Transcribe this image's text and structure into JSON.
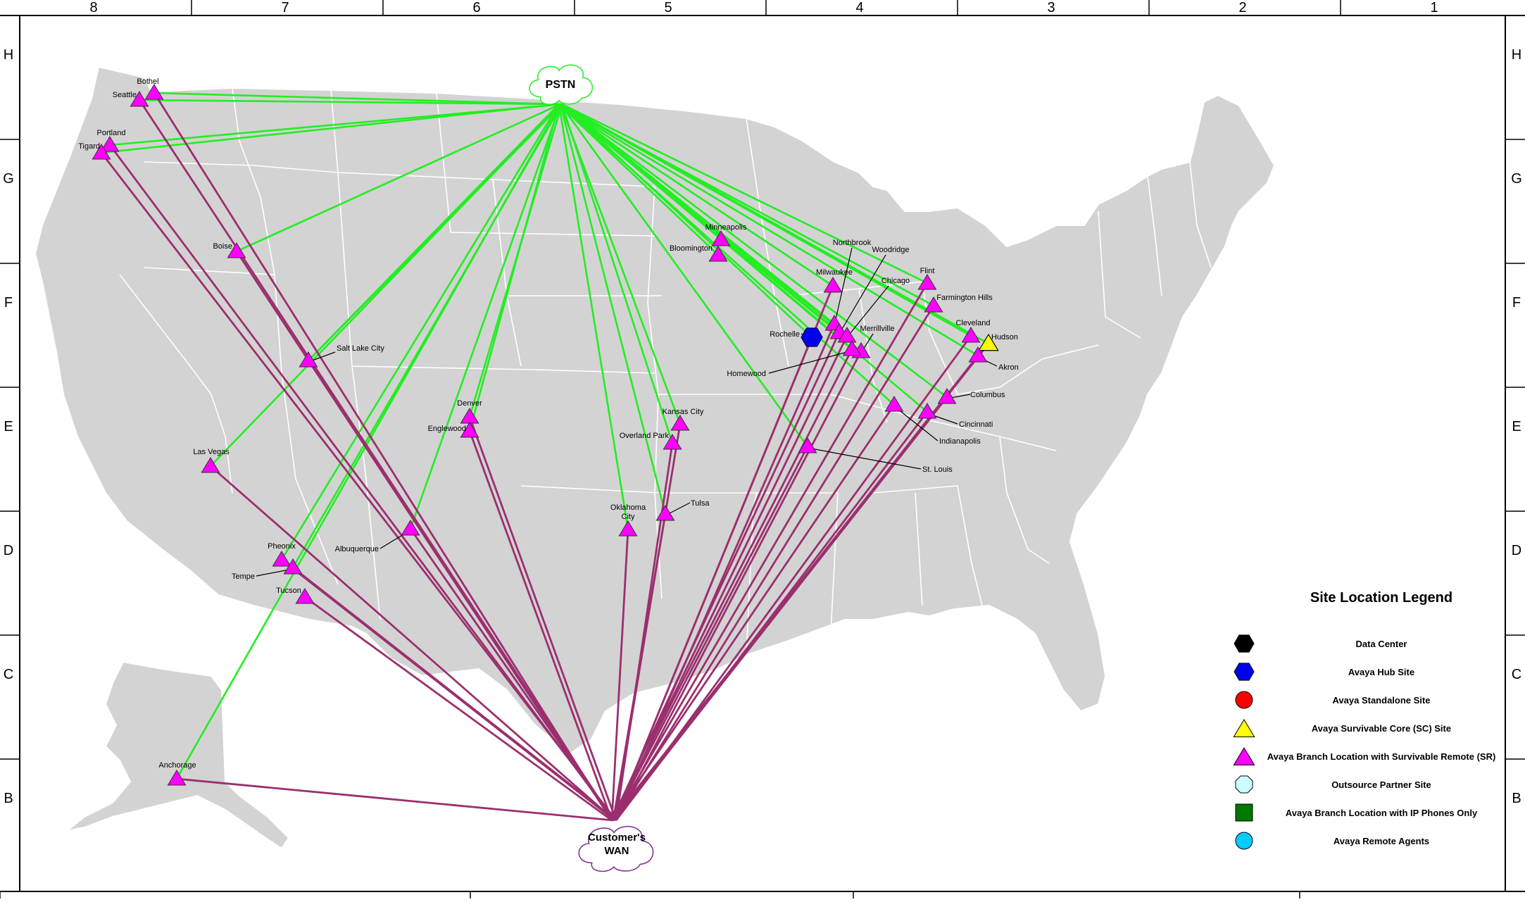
{
  "border": {
    "columns": [
      "8",
      "7",
      "6",
      "5",
      "4",
      "3",
      "2",
      "1"
    ],
    "rows": [
      "H",
      "G",
      "F",
      "E",
      "D",
      "C",
      "B"
    ]
  },
  "clouds": {
    "pstn": "PSTN",
    "wan_line1": "Customer's",
    "wan_line2": "WAN"
  },
  "legend": {
    "title": "Site Location Legend",
    "items": [
      {
        "label": "Data Center",
        "symbol": "hexagon",
        "color": "#000000"
      },
      {
        "label": "Avaya Hub Site",
        "symbol": "hexagon",
        "color": "#0000ee"
      },
      {
        "label": "Avaya Standalone Site",
        "symbol": "circle",
        "color": "#ff0000"
      },
      {
        "label": "Avaya Survivable Core (SC) Site",
        "symbol": "triangle",
        "color": "#ffff00"
      },
      {
        "label": "Avaya Branch Location with Survivable Remote (SR)",
        "symbol": "triangle",
        "color": "#ff00ff"
      },
      {
        "label": "Outsource Partner Site",
        "symbol": "octagon",
        "color": "#ccffff"
      },
      {
        "label": "Avaya Branch Location with IP Phones Only",
        "symbol": "square",
        "color": "#007700"
      },
      {
        "label": "Avaya Remote Agents",
        "symbol": "circle",
        "color": "#00ccff"
      }
    ]
  },
  "colors": {
    "pstn_link": "#22ee22",
    "wan_link": "#9b2f6e",
    "land": "#d3d3d3",
    "branch": "#ff00ff",
    "hub": "#0000ee",
    "core": "#ffff00"
  },
  "sites": [
    {
      "id": "bothel",
      "label": "Bothel",
      "type": "branch"
    },
    {
      "id": "seattle",
      "label": "Seattle",
      "type": "branch"
    },
    {
      "id": "portland",
      "label": "Portland",
      "type": "branch"
    },
    {
      "id": "tigard",
      "label": "Tigard",
      "type": "branch"
    },
    {
      "id": "boise",
      "label": "Boise",
      "type": "branch"
    },
    {
      "id": "saltlake",
      "label": "Salt Lake City",
      "type": "branch"
    },
    {
      "id": "lasvegas",
      "label": "Las Vegas",
      "type": "branch"
    },
    {
      "id": "denver",
      "label": "Denver",
      "type": "branch"
    },
    {
      "id": "englewood",
      "label": "Englewood",
      "type": "branch"
    },
    {
      "id": "albuquerque",
      "label": "Albuquerque",
      "type": "branch"
    },
    {
      "id": "pheonix",
      "label": "Pheonix",
      "type": "branch"
    },
    {
      "id": "tempe",
      "label": "Tempe",
      "type": "branch"
    },
    {
      "id": "tucson",
      "label": "Tucson",
      "type": "branch"
    },
    {
      "id": "anchorage",
      "label": "Anchorage",
      "type": "branch"
    },
    {
      "id": "minneapolis",
      "label": "Minneapolis",
      "type": "branch"
    },
    {
      "id": "bloomington",
      "label": "Bloomington",
      "type": "branch"
    },
    {
      "id": "kansascity",
      "label": "Kansas City",
      "type": "branch"
    },
    {
      "id": "overlandpark",
      "label": "Overland Park",
      "type": "branch"
    },
    {
      "id": "oklahoma",
      "label": "Oklahoma City",
      "type": "branch"
    },
    {
      "id": "tulsa",
      "label": "Tulsa",
      "type": "branch"
    },
    {
      "id": "rochelle",
      "label": "Rochelle",
      "type": "hub"
    },
    {
      "id": "northbrook",
      "label": "Northbrook",
      "type": "branch"
    },
    {
      "id": "woodridge",
      "label": "Woodridge",
      "type": "branch"
    },
    {
      "id": "chicago",
      "label": "Chicago",
      "type": "branch"
    },
    {
      "id": "milwaukee",
      "label": "Milwaukee",
      "type": "branch"
    },
    {
      "id": "merrillville",
      "label": "Merrillville",
      "type": "branch"
    },
    {
      "id": "homewood",
      "label": "Homewood",
      "type": "branch"
    },
    {
      "id": "flint",
      "label": "Flint",
      "type": "branch"
    },
    {
      "id": "farmington",
      "label": "Farmington Hills",
      "type": "branch"
    },
    {
      "id": "cleveland",
      "label": "Cleveland",
      "type": "branch"
    },
    {
      "id": "hudson",
      "label": "Hudson",
      "type": "core"
    },
    {
      "id": "akron",
      "label": "Akron",
      "type": "branch"
    },
    {
      "id": "columbus",
      "label": "Columbus",
      "type": "branch"
    },
    {
      "id": "cincinnati",
      "label": "Cincinnati",
      "type": "branch"
    },
    {
      "id": "indianapolis",
      "label": "Indianapolis",
      "type": "branch"
    },
    {
      "id": "stlouis",
      "label": "St. Louis",
      "type": "branch"
    }
  ]
}
